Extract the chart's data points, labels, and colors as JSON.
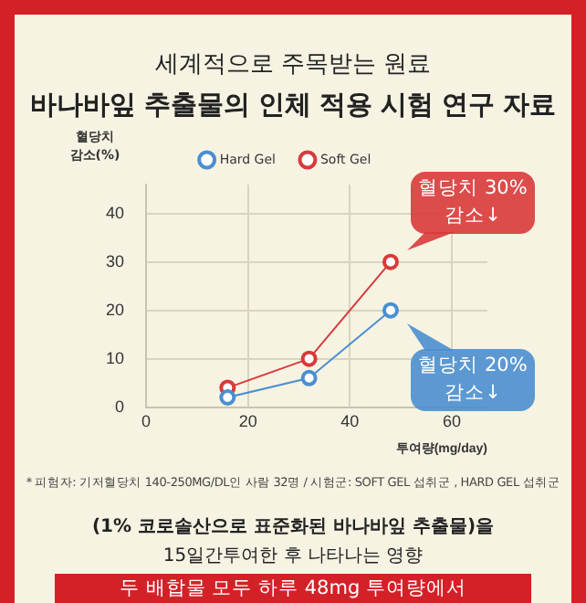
{
  "chart_data": {
    "type": "line",
    "title": "세계적으로 주목받는 원료",
    "subtitle": "바나바잎 추출물의 인체 적용 시험 연구 자료",
    "ylabel": "혈당치 감소(%)",
    "xlabel": "투여량(mg/day)",
    "x": [
      16,
      32,
      48
    ],
    "series": [
      {
        "name": "Hard Gel",
        "color": "#4a8fd0",
        "values": [
          2,
          6,
          20
        ]
      },
      {
        "name": "Soft Gel",
        "color": "#d83a3a",
        "values": [
          4,
          10,
          30
        ]
      }
    ],
    "xlim": [
      0,
      67
    ],
    "xticks": [
      0,
      20,
      40,
      60
    ],
    "ylim": [
      0,
      46
    ],
    "yticks": [
      0,
      10,
      20,
      30,
      40
    ],
    "grid": true,
    "legend": "top",
    "marker": "circle",
    "line_style": "solid",
    "annotations": [
      {
        "text": "혈당치 30% 감소↓",
        "x": 48,
        "y": 30
      },
      {
        "text": "혈당치 20% 감소↓",
        "x": 48,
        "y": 20
      },
      "* 피험자: 기저혈당치 140-250MG/DL인 사람 32명 / 시험군: SOFT GEL 섭취군 , HARD GEL 섭취군",
      "(1% 코로솔산으로 표준화된 바나바잎 추출물)을",
      "15일간투여한 후 나타나는 영향",
      "두 배합물 모두 하루 48mg 투여량에서"
    ]
  }
}
